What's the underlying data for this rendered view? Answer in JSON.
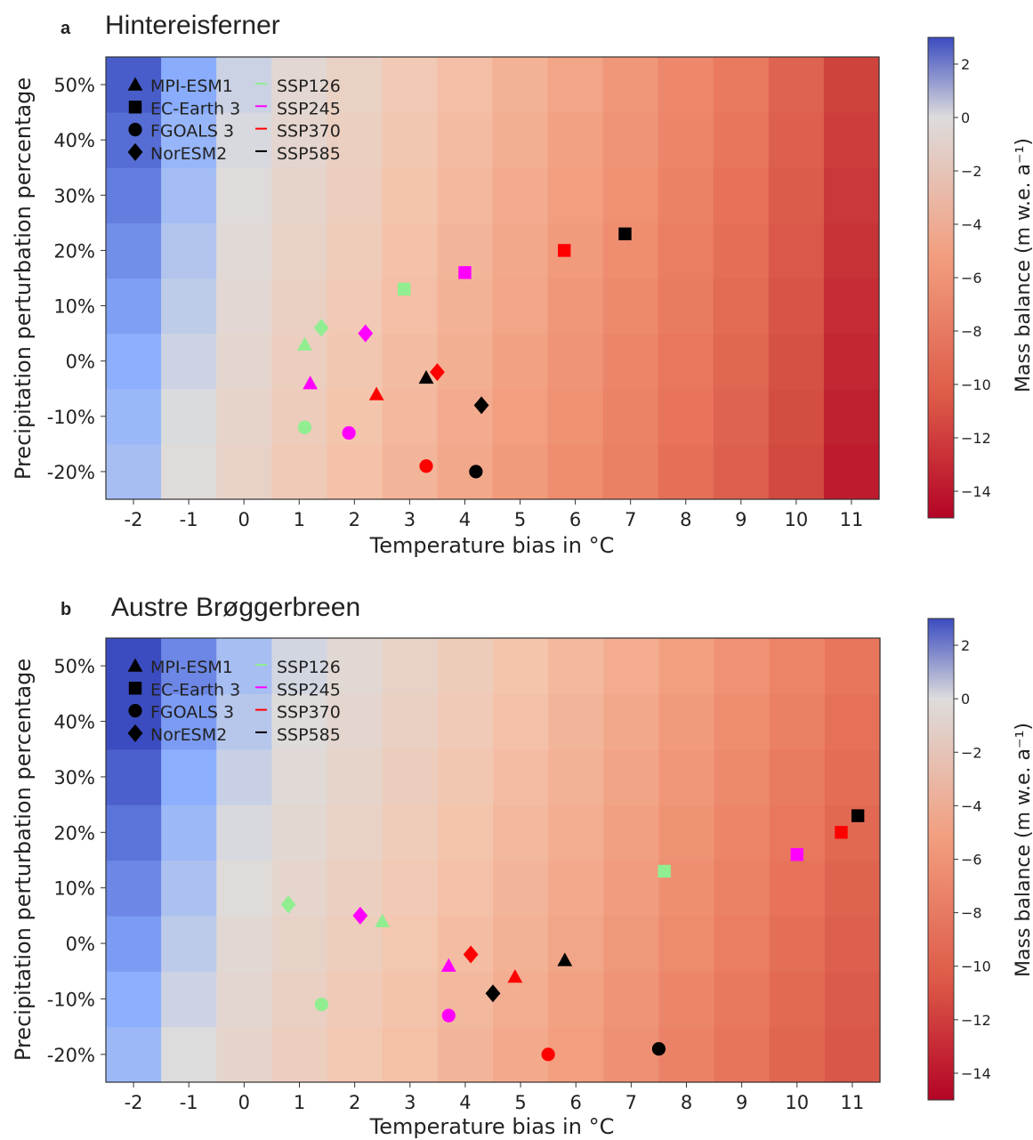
{
  "colorbar": {
    "label": "Mass balance (m w.e. a⁻¹)",
    "min": -15,
    "max": 3,
    "ticks": [
      2,
      0,
      -2,
      -4,
      -6,
      -8,
      -10,
      -12,
      -14
    ],
    "colormap": "coolwarm_r",
    "low_color": "#b40426",
    "mid_color": "#dddcdc",
    "high_color": "#3b4cc0"
  },
  "legend": {
    "models": [
      {
        "name": "MPI-ESM1",
        "marker": "triangle"
      },
      {
        "name": "EC-Earth 3",
        "marker": "square"
      },
      {
        "name": "FGOALS 3",
        "marker": "circle"
      },
      {
        "name": "NorESM2",
        "marker": "diamond"
      }
    ],
    "scenarios": [
      {
        "name": "SSP126",
        "color": "#90ee90"
      },
      {
        "name": "SSP245",
        "color": "#ff00ff"
      },
      {
        "name": "SSP370",
        "color": "#ff0000"
      },
      {
        "name": "SSP585",
        "color": "#000000"
      }
    ]
  },
  "chart_data": [
    {
      "panel": "a",
      "title": "Hintereisferner",
      "type": "heatmap",
      "xlabel": "Temperature bias in °C",
      "ylabel": "Precipitation perturbation percentage",
      "xlim": [
        -2.5,
        11.5
      ],
      "ylim": [
        -25,
        55
      ],
      "x_ticks": [
        "-2",
        "-1",
        "0",
        "1",
        "2",
        "3",
        "4",
        "5",
        "6",
        "7",
        "8",
        "9",
        "10",
        "11"
      ],
      "y_ticks": [
        "-20%",
        "-10%",
        "0%",
        "10%",
        "20%",
        "30%",
        "40%",
        "50%"
      ],
      "heatmap": {
        "x": [
          -2,
          -1,
          0,
          1,
          2,
          3,
          4,
          5,
          6,
          7,
          8,
          9,
          10,
          11
        ],
        "y": [
          -20,
          -10,
          0,
          10,
          20,
          30,
          40,
          50
        ],
        "mb_base": [
          1.5,
          0.3,
          -0.9,
          -1.9,
          -2.8,
          -3.8,
          -4.8,
          -5.8,
          -6.8,
          -7.8,
          -8.9,
          -10.0,
          -11.5,
          -13.5
        ],
        "precip_effect": 0.025
      },
      "points": [
        {
          "model": "MPI-ESM1",
          "scenario": "SSP126",
          "x": 1.1,
          "y": 3
        },
        {
          "model": "MPI-ESM1",
          "scenario": "SSP245",
          "x": 1.2,
          "y": -4
        },
        {
          "model": "MPI-ESM1",
          "scenario": "SSP370",
          "x": 2.4,
          "y": -6
        },
        {
          "model": "MPI-ESM1",
          "scenario": "SSP585",
          "x": 3.3,
          "y": -3
        },
        {
          "model": "EC-Earth 3",
          "scenario": "SSP126",
          "x": 2.9,
          "y": 13
        },
        {
          "model": "EC-Earth 3",
          "scenario": "SSP245",
          "x": 4.0,
          "y": 16
        },
        {
          "model": "EC-Earth 3",
          "scenario": "SSP370",
          "x": 5.8,
          "y": 20
        },
        {
          "model": "EC-Earth 3",
          "scenario": "SSP585",
          "x": 6.9,
          "y": 23
        },
        {
          "model": "FGOALS 3",
          "scenario": "SSP126",
          "x": 1.1,
          "y": -12
        },
        {
          "model": "FGOALS 3",
          "scenario": "SSP245",
          "x": 1.9,
          "y": -13
        },
        {
          "model": "FGOALS 3",
          "scenario": "SSP370",
          "x": 3.3,
          "y": -19
        },
        {
          "model": "FGOALS 3",
          "scenario": "SSP585",
          "x": 4.2,
          "y": -20
        },
        {
          "model": "NorESM2",
          "scenario": "SSP126",
          "x": 1.4,
          "y": 6
        },
        {
          "model": "NorESM2",
          "scenario": "SSP245",
          "x": 2.2,
          "y": 5
        },
        {
          "model": "NorESM2",
          "scenario": "SSP370",
          "x": 3.5,
          "y": -2
        },
        {
          "model": "NorESM2",
          "scenario": "SSP585",
          "x": 4.3,
          "y": -8
        }
      ]
    },
    {
      "panel": "b",
      "title": "Austre Brøggerbreen",
      "type": "heatmap",
      "xlabel": "Temperature bias in °C",
      "ylabel": "Precipitation perturbation percentage",
      "xlim": [
        -2.5,
        11.5
      ],
      "ylim": [
        -25,
        55
      ],
      "x_ticks": [
        "-2",
        "-1",
        "0",
        "1",
        "2",
        "3",
        "4",
        "5",
        "6",
        "7",
        "8",
        "9",
        "10",
        "11"
      ],
      "y_ticks": [
        "-20%",
        "-10%",
        "0%",
        "10%",
        "20%",
        "30%",
        "40%",
        "50%"
      ],
      "heatmap": {
        "x": [
          -2,
          -1,
          0,
          1,
          2,
          3,
          4,
          5,
          6,
          7,
          8,
          9,
          10,
          11
        ],
        "y": [
          -20,
          -10,
          0,
          10,
          20,
          30,
          40,
          50
        ],
        "mb_base": [
          1.8,
          0.6,
          -0.5,
          -1.3,
          -2.1,
          -2.9,
          -3.7,
          -4.6,
          -5.5,
          -6.5,
          -7.5,
          -8.5,
          -9.5,
          -10.5
        ],
        "precip_effect": 0.03
      },
      "points": [
        {
          "model": "MPI-ESM1",
          "scenario": "SSP126",
          "x": 2.5,
          "y": 4
        },
        {
          "model": "MPI-ESM1",
          "scenario": "SSP245",
          "x": 3.7,
          "y": -4
        },
        {
          "model": "MPI-ESM1",
          "scenario": "SSP370",
          "x": 4.9,
          "y": -6
        },
        {
          "model": "MPI-ESM1",
          "scenario": "SSP585",
          "x": 5.8,
          "y": -3
        },
        {
          "model": "EC-Earth 3",
          "scenario": "SSP126",
          "x": 7.6,
          "y": 13
        },
        {
          "model": "EC-Earth 3",
          "scenario": "SSP245",
          "x": 10.0,
          "y": 16
        },
        {
          "model": "EC-Earth 3",
          "scenario": "SSP370",
          "x": 10.8,
          "y": 20
        },
        {
          "model": "EC-Earth 3",
          "scenario": "SSP585",
          "x": 11.1,
          "y": 23
        },
        {
          "model": "FGOALS 3",
          "scenario": "SSP126",
          "x": 1.4,
          "y": -11
        },
        {
          "model": "FGOALS 3",
          "scenario": "SSP245",
          "x": 3.7,
          "y": -13
        },
        {
          "model": "FGOALS 3",
          "scenario": "SSP370",
          "x": 5.5,
          "y": -20
        },
        {
          "model": "FGOALS 3",
          "scenario": "SSP585",
          "x": 7.5,
          "y": -19
        },
        {
          "model": "NorESM2",
          "scenario": "SSP126",
          "x": 0.8,
          "y": 7
        },
        {
          "model": "NorESM2",
          "scenario": "SSP245",
          "x": 2.1,
          "y": 5
        },
        {
          "model": "NorESM2",
          "scenario": "SSP370",
          "x": 4.1,
          "y": -2
        },
        {
          "model": "NorESM2",
          "scenario": "SSP585",
          "x": 4.5,
          "y": -9
        }
      ]
    }
  ]
}
